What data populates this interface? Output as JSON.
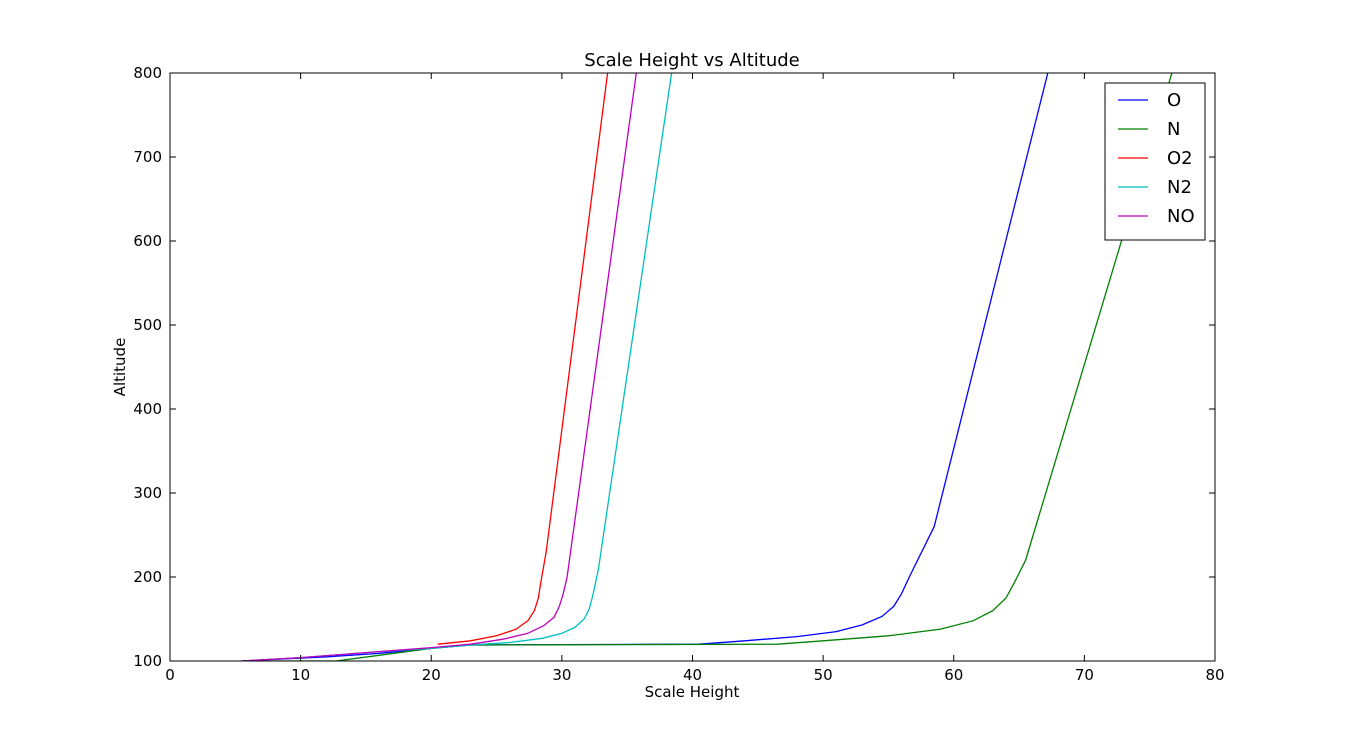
{
  "chart_data": {
    "type": "line",
    "title": "Scale Height vs Altitude",
    "xlabel": "Scale Height",
    "ylabel": "Altitude",
    "xlim": [
      0,
      80
    ],
    "ylim": [
      100,
      800
    ],
    "xticks": [
      0,
      10,
      20,
      30,
      40,
      50,
      60,
      70,
      80
    ],
    "yticks": [
      100,
      200,
      300,
      400,
      500,
      600,
      700,
      800
    ],
    "grid": false,
    "legend": "top-right",
    "series": [
      {
        "name": "O",
        "color": "#0000ff",
        "points": [
          [
            5.5,
            100
          ],
          [
            8,
            102
          ],
          [
            12,
            105
          ],
          [
            16,
            109
          ],
          [
            20,
            115
          ],
          [
            23,
            119
          ],
          [
            30,
            119.5
          ],
          [
            40.5,
            120
          ],
          [
            44,
            124
          ],
          [
            48,
            129
          ],
          [
            51,
            135
          ],
          [
            53,
            143
          ],
          [
            54.5,
            153
          ],
          [
            55.4,
            165
          ],
          [
            56,
            180
          ],
          [
            56.6,
            200
          ],
          [
            58.5,
            260
          ],
          [
            67.2,
            800
          ]
        ]
      },
      {
        "name": "N",
        "color": "#008000",
        "points": [
          [
            5.5,
            100
          ],
          [
            12.7,
            100
          ],
          [
            20,
            115
          ],
          [
            23,
            119
          ],
          [
            35,
            119.5
          ],
          [
            46.5,
            120
          ],
          [
            50,
            124
          ],
          [
            55,
            130
          ],
          [
            59,
            138
          ],
          [
            61.5,
            148
          ],
          [
            63,
            160
          ],
          [
            64,
            175
          ],
          [
            64.7,
            195
          ],
          [
            65.5,
            220
          ],
          [
            76.7,
            800
          ]
        ]
      },
      {
        "name": "O2",
        "color": "#ff0000",
        "points": [
          [
            20.5,
            120
          ],
          [
            23,
            124
          ],
          [
            25,
            130
          ],
          [
            26.5,
            138
          ],
          [
            27.4,
            148
          ],
          [
            27.9,
            160
          ],
          [
            28.2,
            175
          ],
          [
            28.4,
            195
          ],
          [
            28.8,
            230
          ],
          [
            33.5,
            800
          ]
        ]
      },
      {
        "name": "N2",
        "color": "#00bfbf",
        "points": [
          [
            5.5,
            100
          ],
          [
            10,
            104
          ],
          [
            15,
            110
          ],
          [
            20,
            115
          ],
          [
            23,
            119
          ],
          [
            26,
            122
          ],
          [
            28.5,
            127
          ],
          [
            30,
            133
          ],
          [
            31,
            140
          ],
          [
            31.7,
            150
          ],
          [
            32.1,
            162
          ],
          [
            32.4,
            180
          ],
          [
            32.8,
            210
          ],
          [
            38.4,
            800
          ]
        ]
      },
      {
        "name": "NO",
        "color": "#bf00bf",
        "points": [
          [
            5.5,
            100
          ],
          [
            10,
            104
          ],
          [
            15,
            110
          ],
          [
            20,
            116
          ],
          [
            23,
            120
          ],
          [
            25.5,
            126
          ],
          [
            27.4,
            133
          ],
          [
            28.6,
            142
          ],
          [
            29.4,
            152
          ],
          [
            29.8,
            165
          ],
          [
            30.1,
            180
          ],
          [
            30.4,
            200
          ],
          [
            35.7,
            800
          ]
        ]
      }
    ]
  }
}
